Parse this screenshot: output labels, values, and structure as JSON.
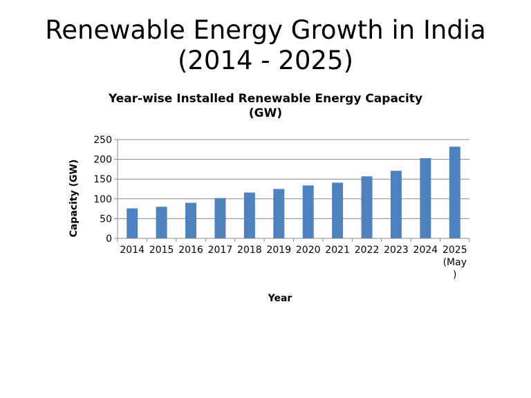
{
  "slide": {
    "title_line1": "Renewable Energy Growth in India",
    "title_line2": "(2014 - 2025)"
  },
  "chart_data": {
    "type": "bar",
    "title_line1": "Year-wise Installed Renewable Energy Capacity",
    "title_line2": "(GW)",
    "xlabel": "Year",
    "ylabel": "Capacity (GW)",
    "ylim": [
      0,
      250
    ],
    "yticks": [
      0,
      50,
      100,
      150,
      200,
      250
    ],
    "grid": true,
    "legend": "none",
    "categories": [
      "2014",
      "2015",
      "2016",
      "2017",
      "2018",
      "2019",
      "2020",
      "2021",
      "2022",
      "2023",
      "2024",
      "2025 (May)"
    ],
    "category_label_lines": [
      [
        "2014"
      ],
      [
        "2015"
      ],
      [
        "2016"
      ],
      [
        "2017"
      ],
      [
        "2018"
      ],
      [
        "2019"
      ],
      [
        "2020"
      ],
      [
        "2021"
      ],
      [
        "2022"
      ],
      [
        "2023"
      ],
      [
        "2024"
      ],
      [
        "2025",
        "(May",
        ")"
      ]
    ],
    "values": [
      76,
      80,
      90,
      102,
      116,
      125,
      134,
      141,
      157,
      171,
      203,
      232
    ],
    "bar_color": "#4F81BD",
    "grid_color": "#878787"
  }
}
